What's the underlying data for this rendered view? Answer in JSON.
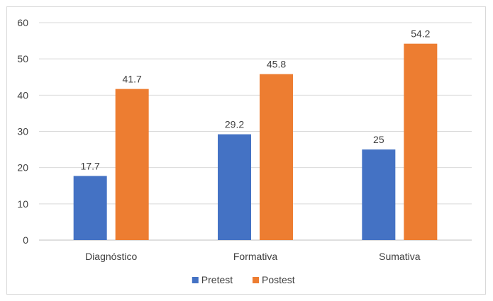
{
  "chart_data": {
    "type": "bar",
    "title": "",
    "xlabel": "",
    "ylabel": "",
    "categories": [
      "Diagnóstico",
      "Formativa",
      "Sumativa"
    ],
    "series": [
      {
        "name": "Pretest",
        "values": [
          17.7,
          29.2,
          25
        ],
        "color": "#4472c4"
      },
      {
        "name": "Postest",
        "values": [
          41.7,
          45.8,
          54.2
        ],
        "color": "#ed7d31"
      }
    ],
    "ylim": [
      0,
      60
    ],
    "yticks": [
      0,
      10,
      20,
      30,
      40,
      50,
      60
    ],
    "grid": true,
    "legend": "bottom"
  }
}
